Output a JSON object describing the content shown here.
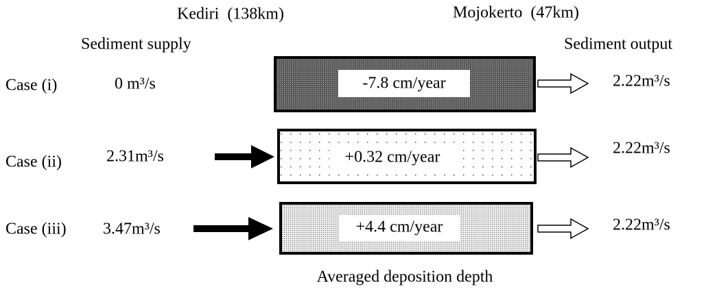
{
  "header": {
    "upstream": "Kediri  (138km)",
    "downstream": "Mojokerto  (47km)",
    "supply_label": "Sediment supply",
    "output_label": "Sediment output"
  },
  "cases": [
    {
      "label": "Case (i)",
      "supply": "0 m³/s",
      "deposition": "-7.8 cm/year",
      "output": "2.22m³/s"
    },
    {
      "label": "Case (ii)",
      "supply": "2.31m³/s",
      "deposition": "+0.32 cm/year",
      "output": "2.22m³/s"
    },
    {
      "label": "Case (iii)",
      "supply": "3.47m³/s",
      "deposition": "+4.4 cm/year",
      "output": "2.22m³/s"
    }
  ],
  "footer": "Averaged deposition depth"
}
